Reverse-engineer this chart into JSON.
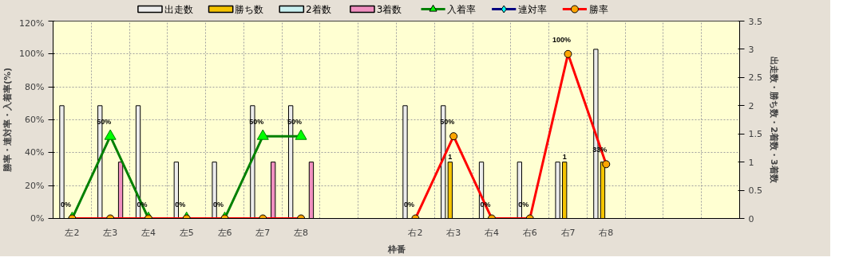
{
  "chart_data": {
    "type": "bar",
    "xlabel": "枠番",
    "ylabel": "勝率・連対率・入着率(%)",
    "y2label": "出走数・勝ち数・2着数・3着数",
    "categories": [
      "左2",
      "左3",
      "左4",
      "左5",
      "左6",
      "左7",
      "左8",
      null,
      null,
      "右2",
      "右3",
      "右4",
      "右6",
      "右7",
      "右8",
      null,
      null,
      null
    ],
    "series": [
      {
        "name": "出走数",
        "axis": "y2",
        "color": "#ececec",
        "values": [
          2,
          2,
          2,
          1,
          1,
          2,
          2,
          null,
          null,
          2,
          2,
          1,
          1,
          1,
          3,
          null,
          null,
          null
        ]
      },
      {
        "name": "勝ち数",
        "axis": "y2",
        "color": "#f5c400",
        "values": [
          null,
          null,
          null,
          null,
          null,
          null,
          null,
          null,
          null,
          null,
          1,
          null,
          null,
          1,
          1,
          null,
          null,
          null
        ],
        "value_labels": [
          null,
          null,
          null,
          null,
          null,
          null,
          null,
          null,
          null,
          null,
          "1",
          null,
          null,
          "1",
          null,
          null,
          null,
          null
        ]
      },
      {
        "name": "2着数",
        "axis": "y2",
        "color": "#c8f0f0",
        "values": [
          null,
          null,
          null,
          null,
          null,
          null,
          null,
          null,
          null,
          null,
          null,
          null,
          null,
          null,
          null,
          null,
          null,
          null
        ]
      },
      {
        "name": "3着数",
        "axis": "y2",
        "color": "#f090c0",
        "values": [
          null,
          1,
          null,
          null,
          null,
          1,
          1,
          null,
          null,
          null,
          null,
          null,
          null,
          null,
          null,
          null,
          null,
          null
        ]
      },
      {
        "name": "入着率",
        "type": "line",
        "marker": "triangle",
        "color": "#008000",
        "values": [
          0,
          50,
          0,
          0,
          0,
          50,
          50,
          null,
          null,
          null,
          null,
          null,
          null,
          null,
          null,
          null,
          null,
          null
        ],
        "value_labels": [
          "0%",
          "50%",
          "0%",
          "0%",
          "0%",
          "50%",
          "50%",
          null,
          null,
          null,
          null,
          null,
          null,
          null,
          null,
          null,
          null,
          null
        ]
      },
      {
        "name": "連対率",
        "type": "line",
        "marker": "diamond",
        "color": "#000080",
        "values": [
          null,
          null,
          null,
          null,
          null,
          null,
          null,
          null,
          null,
          null,
          null,
          null,
          null,
          null,
          null,
          null,
          null,
          null
        ]
      },
      {
        "name": "勝率",
        "type": "line",
        "marker": "circle",
        "color": "#ff0000",
        "values": [
          0,
          0,
          0,
          0,
          0,
          0,
          0,
          null,
          null,
          0,
          50,
          0,
          0,
          100,
          33,
          null,
          null,
          null
        ],
        "value_labels": [
          null,
          null,
          null,
          null,
          null,
          null,
          null,
          null,
          null,
          "0%",
          "50%",
          "0%",
          "0%",
          "100%",
          "33%",
          null,
          null,
          null
        ]
      }
    ],
    "ylim": [
      0,
      120
    ],
    "yticks": [
      {
        "value": 0,
        "label": "0%"
      },
      {
        "value": 20,
        "label": "20%"
      },
      {
        "value": 40,
        "label": "40%"
      },
      {
        "value": 60,
        "label": "60%"
      },
      {
        "value": 80,
        "label": "80%"
      },
      {
        "value": 100,
        "label": "100%"
      },
      {
        "value": 120,
        "label": "120%"
      }
    ],
    "y2lim": [
      0,
      3.5
    ],
    "y2ticks": [
      0,
      0.5,
      1,
      1.5,
      2,
      2.5,
      3,
      3.5
    ],
    "grid": true,
    "legend": "top"
  }
}
